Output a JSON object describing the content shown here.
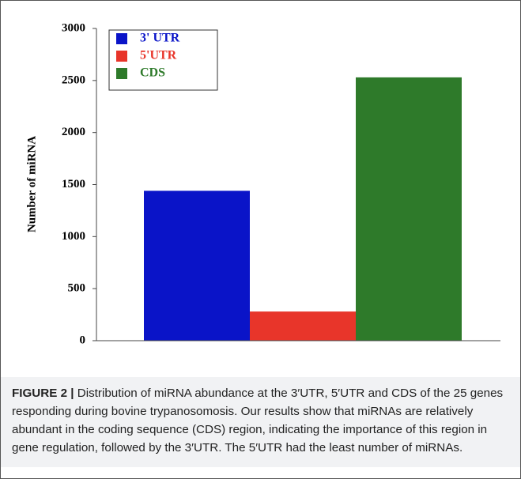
{
  "chart_data": {
    "type": "bar",
    "categories": [
      null
    ],
    "series": [
      {
        "name": "3' UTR",
        "color": "#0a14c8",
        "values": [
          1440
        ]
      },
      {
        "name": "5'UTR",
        "color": "#e8352a",
        "values": [
          280
        ]
      },
      {
        "name": "CDS",
        "color": "#2e7a2a",
        "values": [
          2530
        ]
      }
    ],
    "y_label": "Number of miRNA",
    "ylim": [
      0,
      3000
    ],
    "yticks": [
      0,
      500,
      1000,
      1500,
      2000,
      2500,
      3000
    ],
    "legend": "top-left",
    "grid": false
  },
  "caption": {
    "label": "FIGURE 2 |",
    "text": "Distribution of miRNA abundance at the 3′UTR, 5′UTR and CDS of the 25 genes responding during bovine trypanosomosis. Our results show that miRNAs are relatively abundant in the coding sequence (CDS) region, indicating the importance of this region in gene regulation, followed by the 3′UTR. The 5′UTR had the least number of miRNAs."
  }
}
